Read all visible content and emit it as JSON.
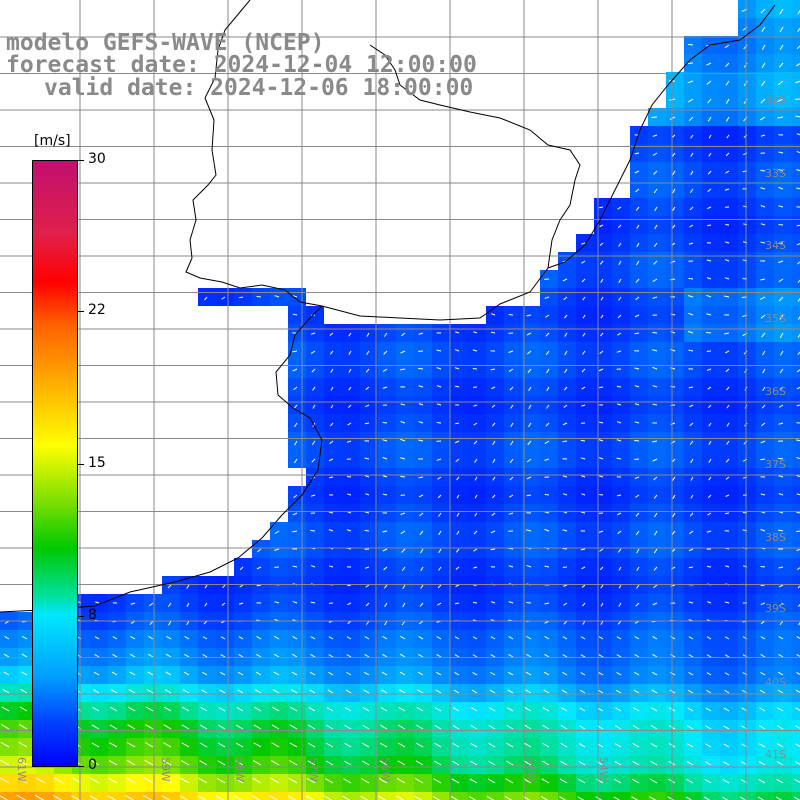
{
  "title": {
    "line1": "modelo GEFS-WAVE (NCEP)",
    "line2": "forecast date: 2024-12-04 12:00:00",
    "line3": "valid date: 2024-12-06 18:00:00"
  },
  "colorbar": {
    "unit": "[m/s]",
    "ticks": [
      {
        "label": "30",
        "value": 30
      },
      {
        "label": "22",
        "value": 22
      },
      {
        "label": "15",
        "value": 15
      },
      {
        "label": "8",
        "value": 8
      },
      {
        "label": "0",
        "value": 0
      }
    ]
  },
  "map": {
    "lon_labels": [
      "61W",
      "59W",
      "58W",
      "57W",
      "56W",
      "55W",
      "54W"
    ],
    "lat_labels": [
      "32S",
      "33S",
      "34S",
      "35S",
      "36S",
      "37S",
      "38S",
      "39S",
      "40S",
      "41S"
    ],
    "variable": "wind speed with direction arrows",
    "colors": {
      "low": "#0000ff",
      "mid": "#00e8ff",
      "high": "#ffff00",
      "max": "#c01070",
      "land": "#ffffff",
      "grid": "#888888"
    }
  }
}
